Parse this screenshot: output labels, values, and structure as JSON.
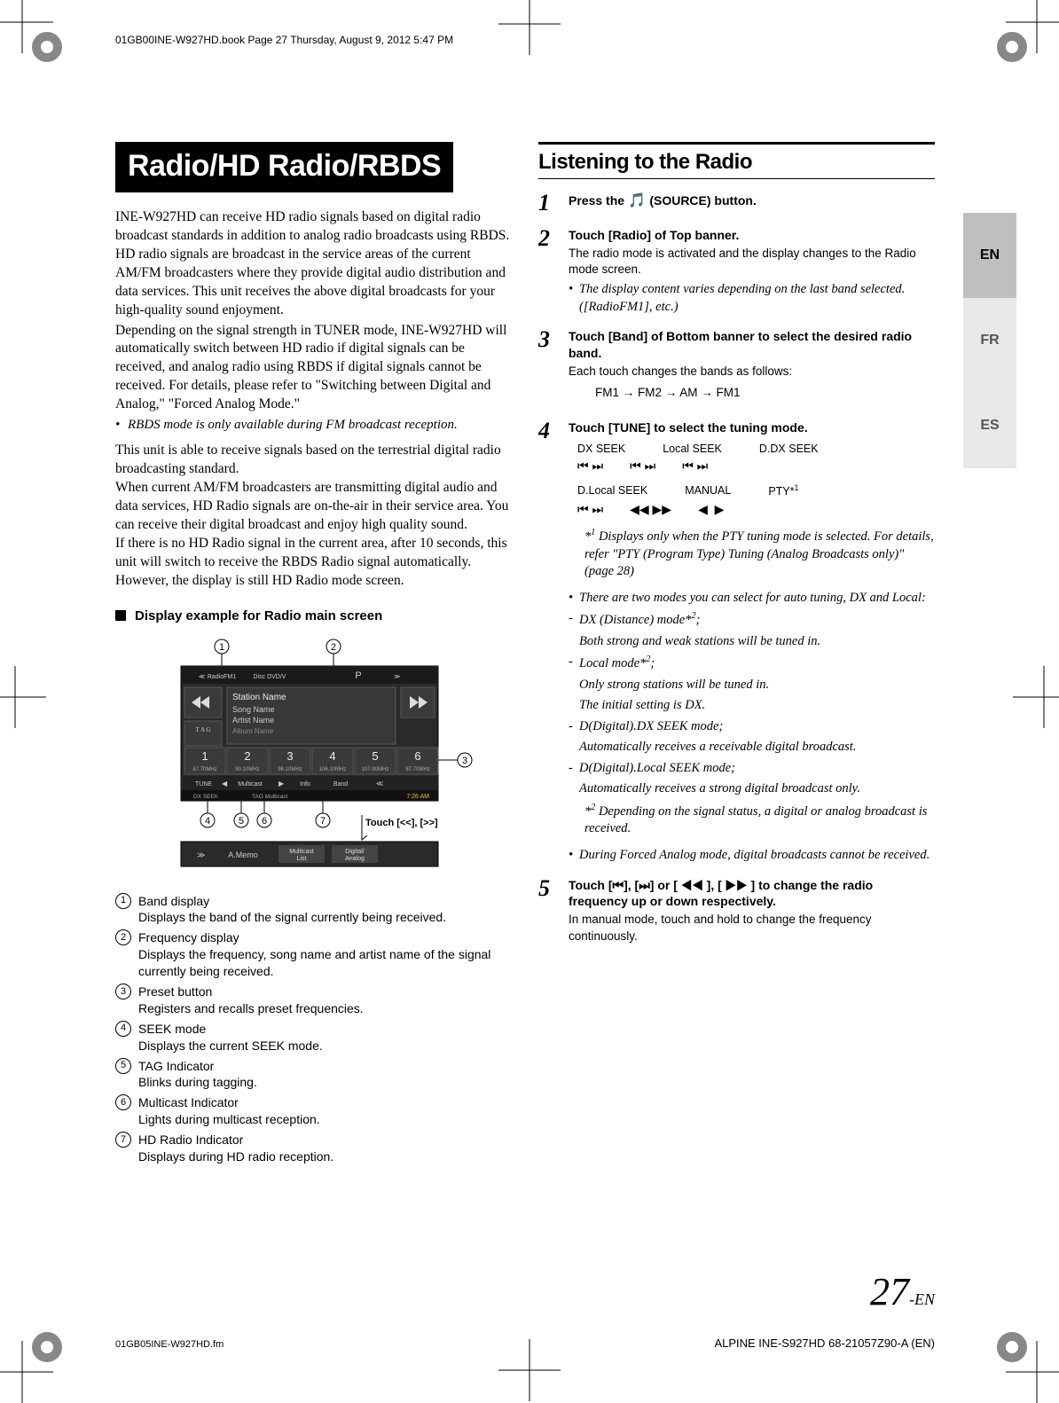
{
  "header_line": "01GB00INE-W927HD.book  Page 27  Thursday, August 9, 2012  5:47 PM",
  "title": "Radio/HD Radio/RBDS",
  "intro_p1": "INE-W927HD can receive HD radio signals based on digital radio broadcast standards in addition to analog radio broadcasts using RBDS. HD radio signals are broadcast in the service areas of the current AM/FM broadcasters where they provide digital audio distribution and data services. This unit receives the above digital broadcasts for your high-quality sound enjoyment.",
  "intro_p2": "Depending on the signal strength in TUNER mode, INE-W927HD will automatically switch between HD radio if digital signals can be received, and analog radio using RBDS if digital signals cannot be received. For details, please refer to \"Switching between Digital and Analog,\" \"Forced Analog Mode.\"",
  "intro_note": "RBDS mode is only available during FM broadcast reception.",
  "intro_p3": "This unit is able to receive signals based on the terrestrial digital radio broadcasting standard.",
  "intro_p4": "When current AM/FM broadcasters are transmitting digital audio and data services, HD Radio signals are on-the-air in their service area. You can receive their digital broadcast and enjoy high quality sound.",
  "intro_p5": "If there is no HD Radio signal in the current area, after 10 seconds, this unit will switch to receive the RBDS Radio signal automatically. However, the display is still HD Radio mode screen.",
  "display_heading": "Display example for Radio main screen",
  "figure": {
    "callout_touch": "Touch [<<], [>>]",
    "top_labels": [
      "RadioFM1",
      "Disc DVD/V",
      "P"
    ],
    "info_lines": [
      "Station Name",
      "Song Name",
      "Artist Name",
      "Album Name"
    ],
    "presets": [
      {
        "num": "1",
        "freq": "87.70MHz"
      },
      {
        "num": "2",
        "freq": "90.10MHz"
      },
      {
        "num": "3",
        "freq": "98.10MHz"
      },
      {
        "num": "4",
        "freq": "106.10MHz"
      },
      {
        "num": "5",
        "freq": "107.90MHz"
      },
      {
        "num": "6",
        "freq": "87.70MHz"
      }
    ],
    "bottom_row": [
      "TUNE",
      "◀",
      "Multicast",
      "▶",
      "Info",
      "Band",
      "≪"
    ],
    "status_left": "DX SEEK",
    "status_mid": "TAG  Multicast",
    "time": "7:26 AM",
    "menu_row": [
      "≫",
      "A.Memo",
      "Multicast List",
      "Digital/Analog"
    ]
  },
  "legend": [
    {
      "n": "1",
      "t": "Band display",
      "d": "Displays the band of the signal currently being received."
    },
    {
      "n": "2",
      "t": "Frequency display",
      "d": "Displays the frequency, song name and artist name of the signal currently being received."
    },
    {
      "n": "3",
      "t": "Preset button",
      "d": "Registers and recalls preset frequencies."
    },
    {
      "n": "4",
      "t": "SEEK mode",
      "d": "Displays the current SEEK mode."
    },
    {
      "n": "5",
      "t": "TAG Indicator",
      "d": "Blinks during tagging."
    },
    {
      "n": "6",
      "t": "Multicast Indicator",
      "d": "Lights during multicast reception."
    },
    {
      "n": "7",
      "t": "HD Radio Indicator",
      "d": "Displays during HD radio reception."
    }
  ],
  "col2_title": "Listening to the Radio",
  "steps": {
    "s1": {
      "head_pre": "Press the ",
      "head_btn": "(SOURCE) button",
      "head_post": "."
    },
    "s2": {
      "head": "Touch [Radio] of Top banner.",
      "sub": "The radio mode is activated and the display changes to the Radio mode screen.",
      "note": "The display content varies depending on the last band selected. ([RadioFM1], etc.)"
    },
    "s3": {
      "head": "Touch [Band] of Bottom banner to select the desired radio band.",
      "sub": "Each touch changes the bands as follows:",
      "cycle": "FM1 → FM2 → AM → FM1"
    },
    "s4": {
      "head": "Touch [TUNE] to select the tuning mode.",
      "row1": [
        "DX SEEK",
        "Local SEEK",
        "D.DX SEEK"
      ],
      "row2": [
        "D.Local SEEK",
        "MANUAL",
        "PTY*"
      ],
      "star1": "Displays only when the PTY tuning mode is selected. For details, refer \"PTY (Program Type) Tuning (Analog Broadcasts only)\" (page 28)",
      "bul1": "There are two modes you can select for auto tuning, DX and Local:",
      "dash1a": "DX (Distance) mode*",
      "dash1b": "Both strong and weak stations will be tuned in.",
      "dash2a": "Local mode*",
      "dash2b": "Only strong stations will be tuned in.",
      "dash2c": "The initial setting is DX.",
      "dash3a": "D(Digital).DX SEEK mode;",
      "dash3b": "Automatically receives a receivable digital broadcast.",
      "dash4a": "D(Digital).Local SEEK mode;",
      "dash4b": "Automatically receives a strong digital broadcast only.",
      "star2": "Depending on the signal status, a digital or analog broadcast is received.",
      "bul2": "During Forced Analog mode, digital broadcasts cannot be received."
    },
    "s5": {
      "head": "Touch [⏮], [⏭] or [ ◀◀ ], [ ▶▶ ] to change the radio frequency up or down respectively.",
      "sub": "In manual mode, touch and hold to change the frequency continuously."
    }
  },
  "lang": {
    "en": "EN",
    "fr": "FR",
    "es": "ES"
  },
  "pagenum": "27",
  "pagenum_suffix": "-EN",
  "footer_left": "01GB05INE-W927HD.fm",
  "footer_right": "ALPINE INE-S927HD 68-21057Z90-A (EN)"
}
